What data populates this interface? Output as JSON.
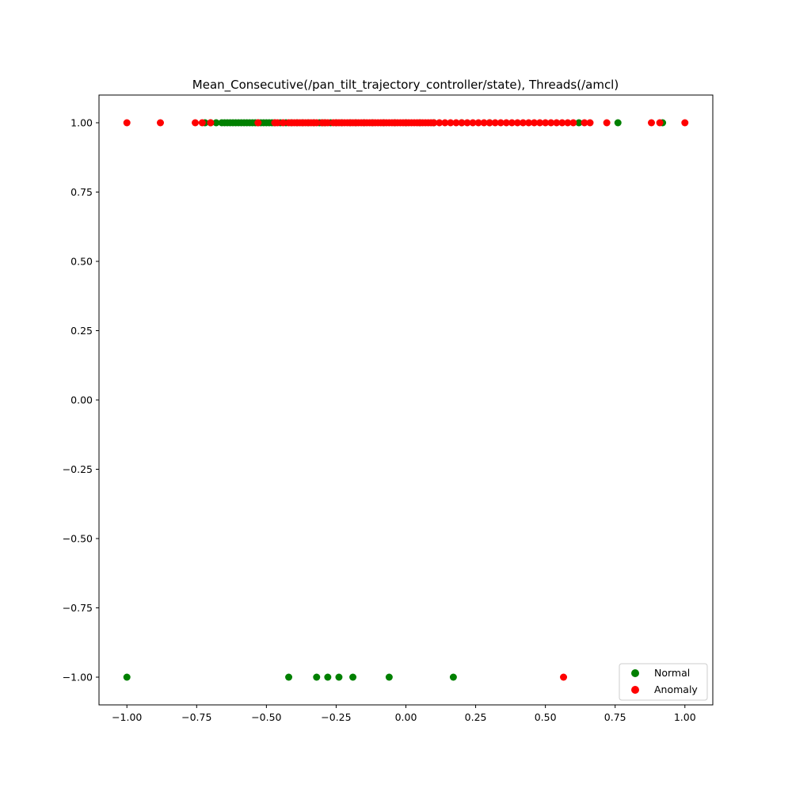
{
  "chart_data": {
    "type": "scatter",
    "title": "Mean_Consecutive(/pan_tilt_trajectory_controller/state), Threads(/amcl)",
    "xlabel": "",
    "ylabel": "",
    "xlim": [
      -1.1,
      1.1
    ],
    "ylim": [
      -1.1,
      1.1
    ],
    "x_ticks": [
      -1.0,
      -0.75,
      -0.5,
      -0.25,
      0.0,
      0.25,
      0.5,
      0.75,
      1.0
    ],
    "x_tick_labels": [
      "−1.00",
      "−0.75",
      "−0.50",
      "−0.25",
      "0.00",
      "0.25",
      "0.50",
      "0.75",
      "1.00"
    ],
    "y_ticks": [
      -1.0,
      -0.75,
      -0.5,
      -0.25,
      0.0,
      0.25,
      0.5,
      0.75,
      1.0
    ],
    "y_tick_labels": [
      "−1.00",
      "−0.75",
      "−0.50",
      "−0.25",
      "0.00",
      "0.25",
      "0.50",
      "0.75",
      "1.00"
    ],
    "grid": false,
    "legend_position": "lower-right",
    "series": [
      {
        "name": "Normal",
        "color": "#008000",
        "points": [
          [
            -1.0,
            -1.0
          ],
          [
            -0.42,
            -1.0
          ],
          [
            -0.32,
            -1.0
          ],
          [
            -0.28,
            -1.0
          ],
          [
            -0.24,
            -1.0
          ],
          [
            -0.19,
            -1.0
          ],
          [
            -0.06,
            -1.0
          ],
          [
            0.17,
            -1.0
          ],
          [
            -0.72,
            1.0
          ],
          [
            -0.7,
            1.0
          ],
          [
            -0.68,
            1.0
          ],
          [
            -0.66,
            1.0
          ],
          [
            -0.65,
            1.0
          ],
          [
            -0.64,
            1.0
          ],
          [
            -0.63,
            1.0
          ],
          [
            -0.62,
            1.0
          ],
          [
            -0.61,
            1.0
          ],
          [
            -0.6,
            1.0
          ],
          [
            -0.59,
            1.0
          ],
          [
            -0.58,
            1.0
          ],
          [
            -0.57,
            1.0
          ],
          [
            -0.56,
            1.0
          ],
          [
            -0.55,
            1.0
          ],
          [
            -0.54,
            1.0
          ],
          [
            -0.53,
            1.0
          ],
          [
            -0.52,
            1.0
          ],
          [
            -0.51,
            1.0
          ],
          [
            -0.5,
            1.0
          ],
          [
            -0.49,
            1.0
          ],
          [
            -0.48,
            1.0
          ],
          [
            -0.47,
            1.0
          ],
          [
            -0.45,
            1.0
          ],
          [
            -0.43,
            1.0
          ],
          [
            -0.41,
            1.0
          ],
          [
            -0.39,
            1.0
          ],
          [
            -0.37,
            1.0
          ],
          [
            -0.35,
            1.0
          ],
          [
            -0.33,
            1.0
          ],
          [
            -0.31,
            1.0
          ],
          [
            -0.3,
            1.0
          ],
          [
            -0.29,
            1.0
          ],
          [
            -0.27,
            1.0
          ],
          [
            -0.25,
            1.0
          ],
          [
            -0.23,
            1.0
          ],
          [
            -0.2,
            1.0
          ],
          [
            -0.18,
            1.0
          ],
          [
            -0.15,
            1.0
          ],
          [
            -0.12,
            1.0
          ],
          [
            -0.08,
            1.0
          ],
          [
            -0.04,
            1.0
          ],
          [
            0.0,
            1.0
          ],
          [
            0.05,
            1.0
          ],
          [
            0.1,
            1.0
          ],
          [
            0.2,
            1.0
          ],
          [
            0.3,
            1.0
          ],
          [
            0.62,
            1.0
          ],
          [
            0.76,
            1.0
          ],
          [
            0.92,
            1.0
          ]
        ]
      },
      {
        "name": "Anomaly",
        "color": "#ff0000",
        "points": [
          [
            -1.0,
            1.0
          ],
          [
            -0.88,
            1.0
          ],
          [
            -0.755,
            1.0
          ],
          [
            -0.73,
            1.0
          ],
          [
            -0.7,
            1.0
          ],
          [
            -0.53,
            1.0
          ],
          [
            -0.47,
            1.0
          ],
          [
            -0.46,
            1.0
          ],
          [
            -0.44,
            1.0
          ],
          [
            -0.42,
            1.0
          ],
          [
            -0.41,
            1.0
          ],
          [
            -0.4,
            1.0
          ],
          [
            -0.39,
            1.0
          ],
          [
            -0.38,
            1.0
          ],
          [
            -0.37,
            1.0
          ],
          [
            -0.36,
            1.0
          ],
          [
            -0.35,
            1.0
          ],
          [
            -0.34,
            1.0
          ],
          [
            -0.33,
            1.0
          ],
          [
            -0.32,
            1.0
          ],
          [
            -0.3,
            1.0
          ],
          [
            -0.29,
            1.0
          ],
          [
            -0.28,
            1.0
          ],
          [
            -0.26,
            1.0
          ],
          [
            -0.25,
            1.0
          ],
          [
            -0.24,
            1.0
          ],
          [
            -0.23,
            1.0
          ],
          [
            -0.22,
            1.0
          ],
          [
            -0.21,
            1.0
          ],
          [
            -0.2,
            1.0
          ],
          [
            -0.19,
            1.0
          ],
          [
            -0.18,
            1.0
          ],
          [
            -0.17,
            1.0
          ],
          [
            -0.16,
            1.0
          ],
          [
            -0.15,
            1.0
          ],
          [
            -0.14,
            1.0
          ],
          [
            -0.13,
            1.0
          ],
          [
            -0.12,
            1.0
          ],
          [
            -0.11,
            1.0
          ],
          [
            -0.1,
            1.0
          ],
          [
            -0.09,
            1.0
          ],
          [
            -0.08,
            1.0
          ],
          [
            -0.07,
            1.0
          ],
          [
            -0.06,
            1.0
          ],
          [
            -0.05,
            1.0
          ],
          [
            -0.04,
            1.0
          ],
          [
            -0.03,
            1.0
          ],
          [
            -0.02,
            1.0
          ],
          [
            -0.01,
            1.0
          ],
          [
            0.0,
            1.0
          ],
          [
            0.01,
            1.0
          ],
          [
            0.02,
            1.0
          ],
          [
            0.03,
            1.0
          ],
          [
            0.04,
            1.0
          ],
          [
            0.05,
            1.0
          ],
          [
            0.06,
            1.0
          ],
          [
            0.07,
            1.0
          ],
          [
            0.08,
            1.0
          ],
          [
            0.09,
            1.0
          ],
          [
            0.1,
            1.0
          ],
          [
            0.12,
            1.0
          ],
          [
            0.14,
            1.0
          ],
          [
            0.16,
            1.0
          ],
          [
            0.18,
            1.0
          ],
          [
            0.2,
            1.0
          ],
          [
            0.22,
            1.0
          ],
          [
            0.24,
            1.0
          ],
          [
            0.26,
            1.0
          ],
          [
            0.28,
            1.0
          ],
          [
            0.3,
            1.0
          ],
          [
            0.32,
            1.0
          ],
          [
            0.34,
            1.0
          ],
          [
            0.36,
            1.0
          ],
          [
            0.38,
            1.0
          ],
          [
            0.4,
            1.0
          ],
          [
            0.42,
            1.0
          ],
          [
            0.44,
            1.0
          ],
          [
            0.46,
            1.0
          ],
          [
            0.48,
            1.0
          ],
          [
            0.5,
            1.0
          ],
          [
            0.52,
            1.0
          ],
          [
            0.54,
            1.0
          ],
          [
            0.56,
            1.0
          ],
          [
            0.58,
            1.0
          ],
          [
            0.6,
            1.0
          ],
          [
            0.64,
            1.0
          ],
          [
            0.66,
            1.0
          ],
          [
            0.72,
            1.0
          ],
          [
            0.88,
            1.0
          ],
          [
            0.91,
            1.0
          ],
          [
            1.0,
            1.0
          ],
          [
            0.565,
            -1.0
          ]
        ]
      }
    ]
  }
}
